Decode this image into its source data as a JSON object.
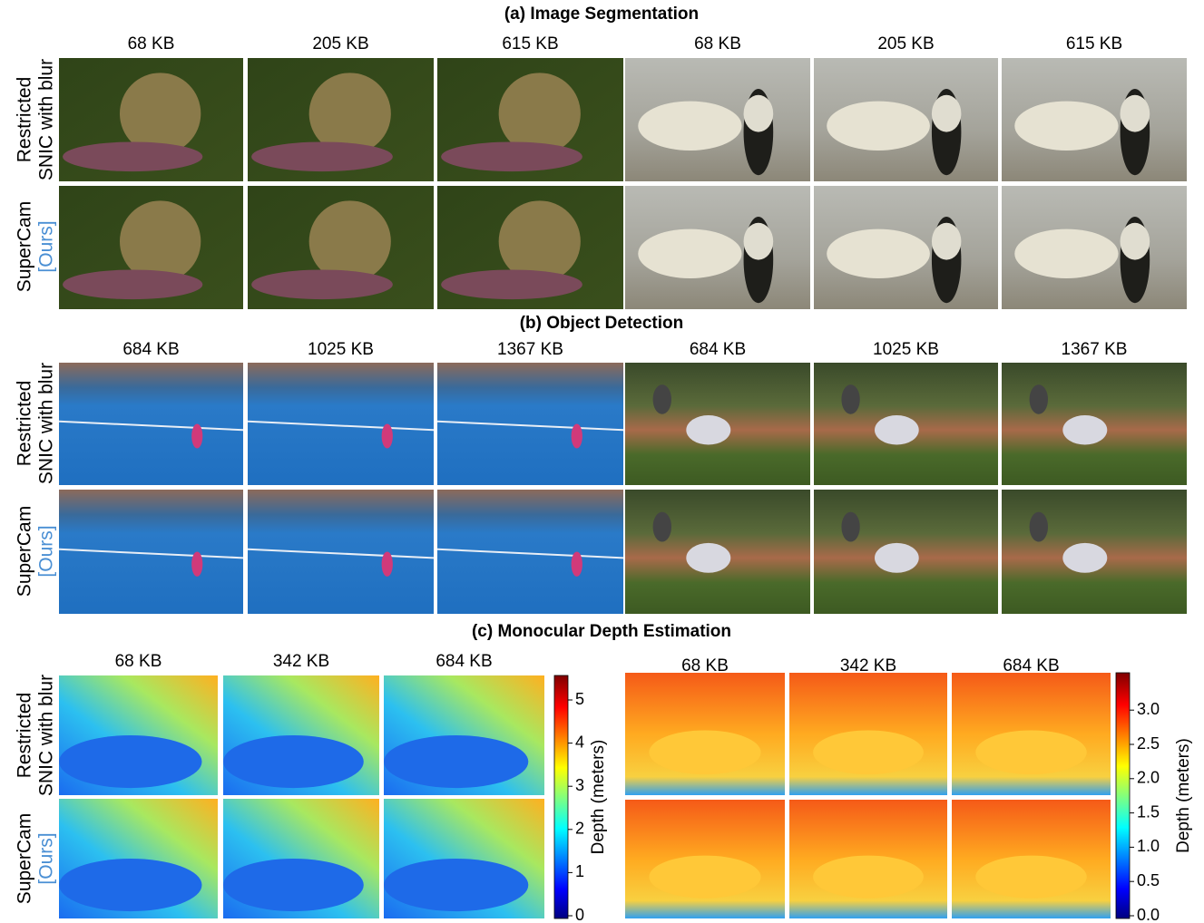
{
  "sections": [
    {
      "title": "(a) Image Segmentation",
      "columns": [
        "68 KB",
        "205 KB",
        "615 KB",
        "68 KB",
        "205 KB",
        "615 KB"
      ],
      "rows": [
        [
          "Restricted",
          "SNIC with blur"
        ],
        [
          "SuperCam",
          "[Ours]"
        ]
      ]
    },
    {
      "title": "(b) Object Detection",
      "columns": [
        "684 KB",
        "1025 KB",
        "1367 KB",
        "684 KB",
        "1025 KB",
        "1367 KB"
      ],
      "rows": [
        [
          "Restricted",
          "SNIC with blur"
        ],
        [
          "SuperCam",
          "[Ours]"
        ]
      ]
    },
    {
      "title": "(c) Monocular Depth Estimation",
      "columns": [
        "68 KB",
        "342 KB",
        "684 KB",
        "68 KB",
        "342 KB",
        "684 KB"
      ],
      "rows": [
        [
          "Restricted",
          "SNIC with blur"
        ],
        [
          "SuperCam",
          "[Ours]"
        ]
      ],
      "colorbars": [
        {
          "label": "Depth (meters)",
          "ticks": [
            "0",
            "1",
            "2",
            "3",
            "4",
            "5"
          ]
        },
        {
          "label": "Depth (meters)",
          "ticks": [
            "0.0",
            "0.5",
            "1.0",
            "1.5",
            "2.0",
            "2.5",
            "3.0"
          ]
        }
      ]
    }
  ]
}
